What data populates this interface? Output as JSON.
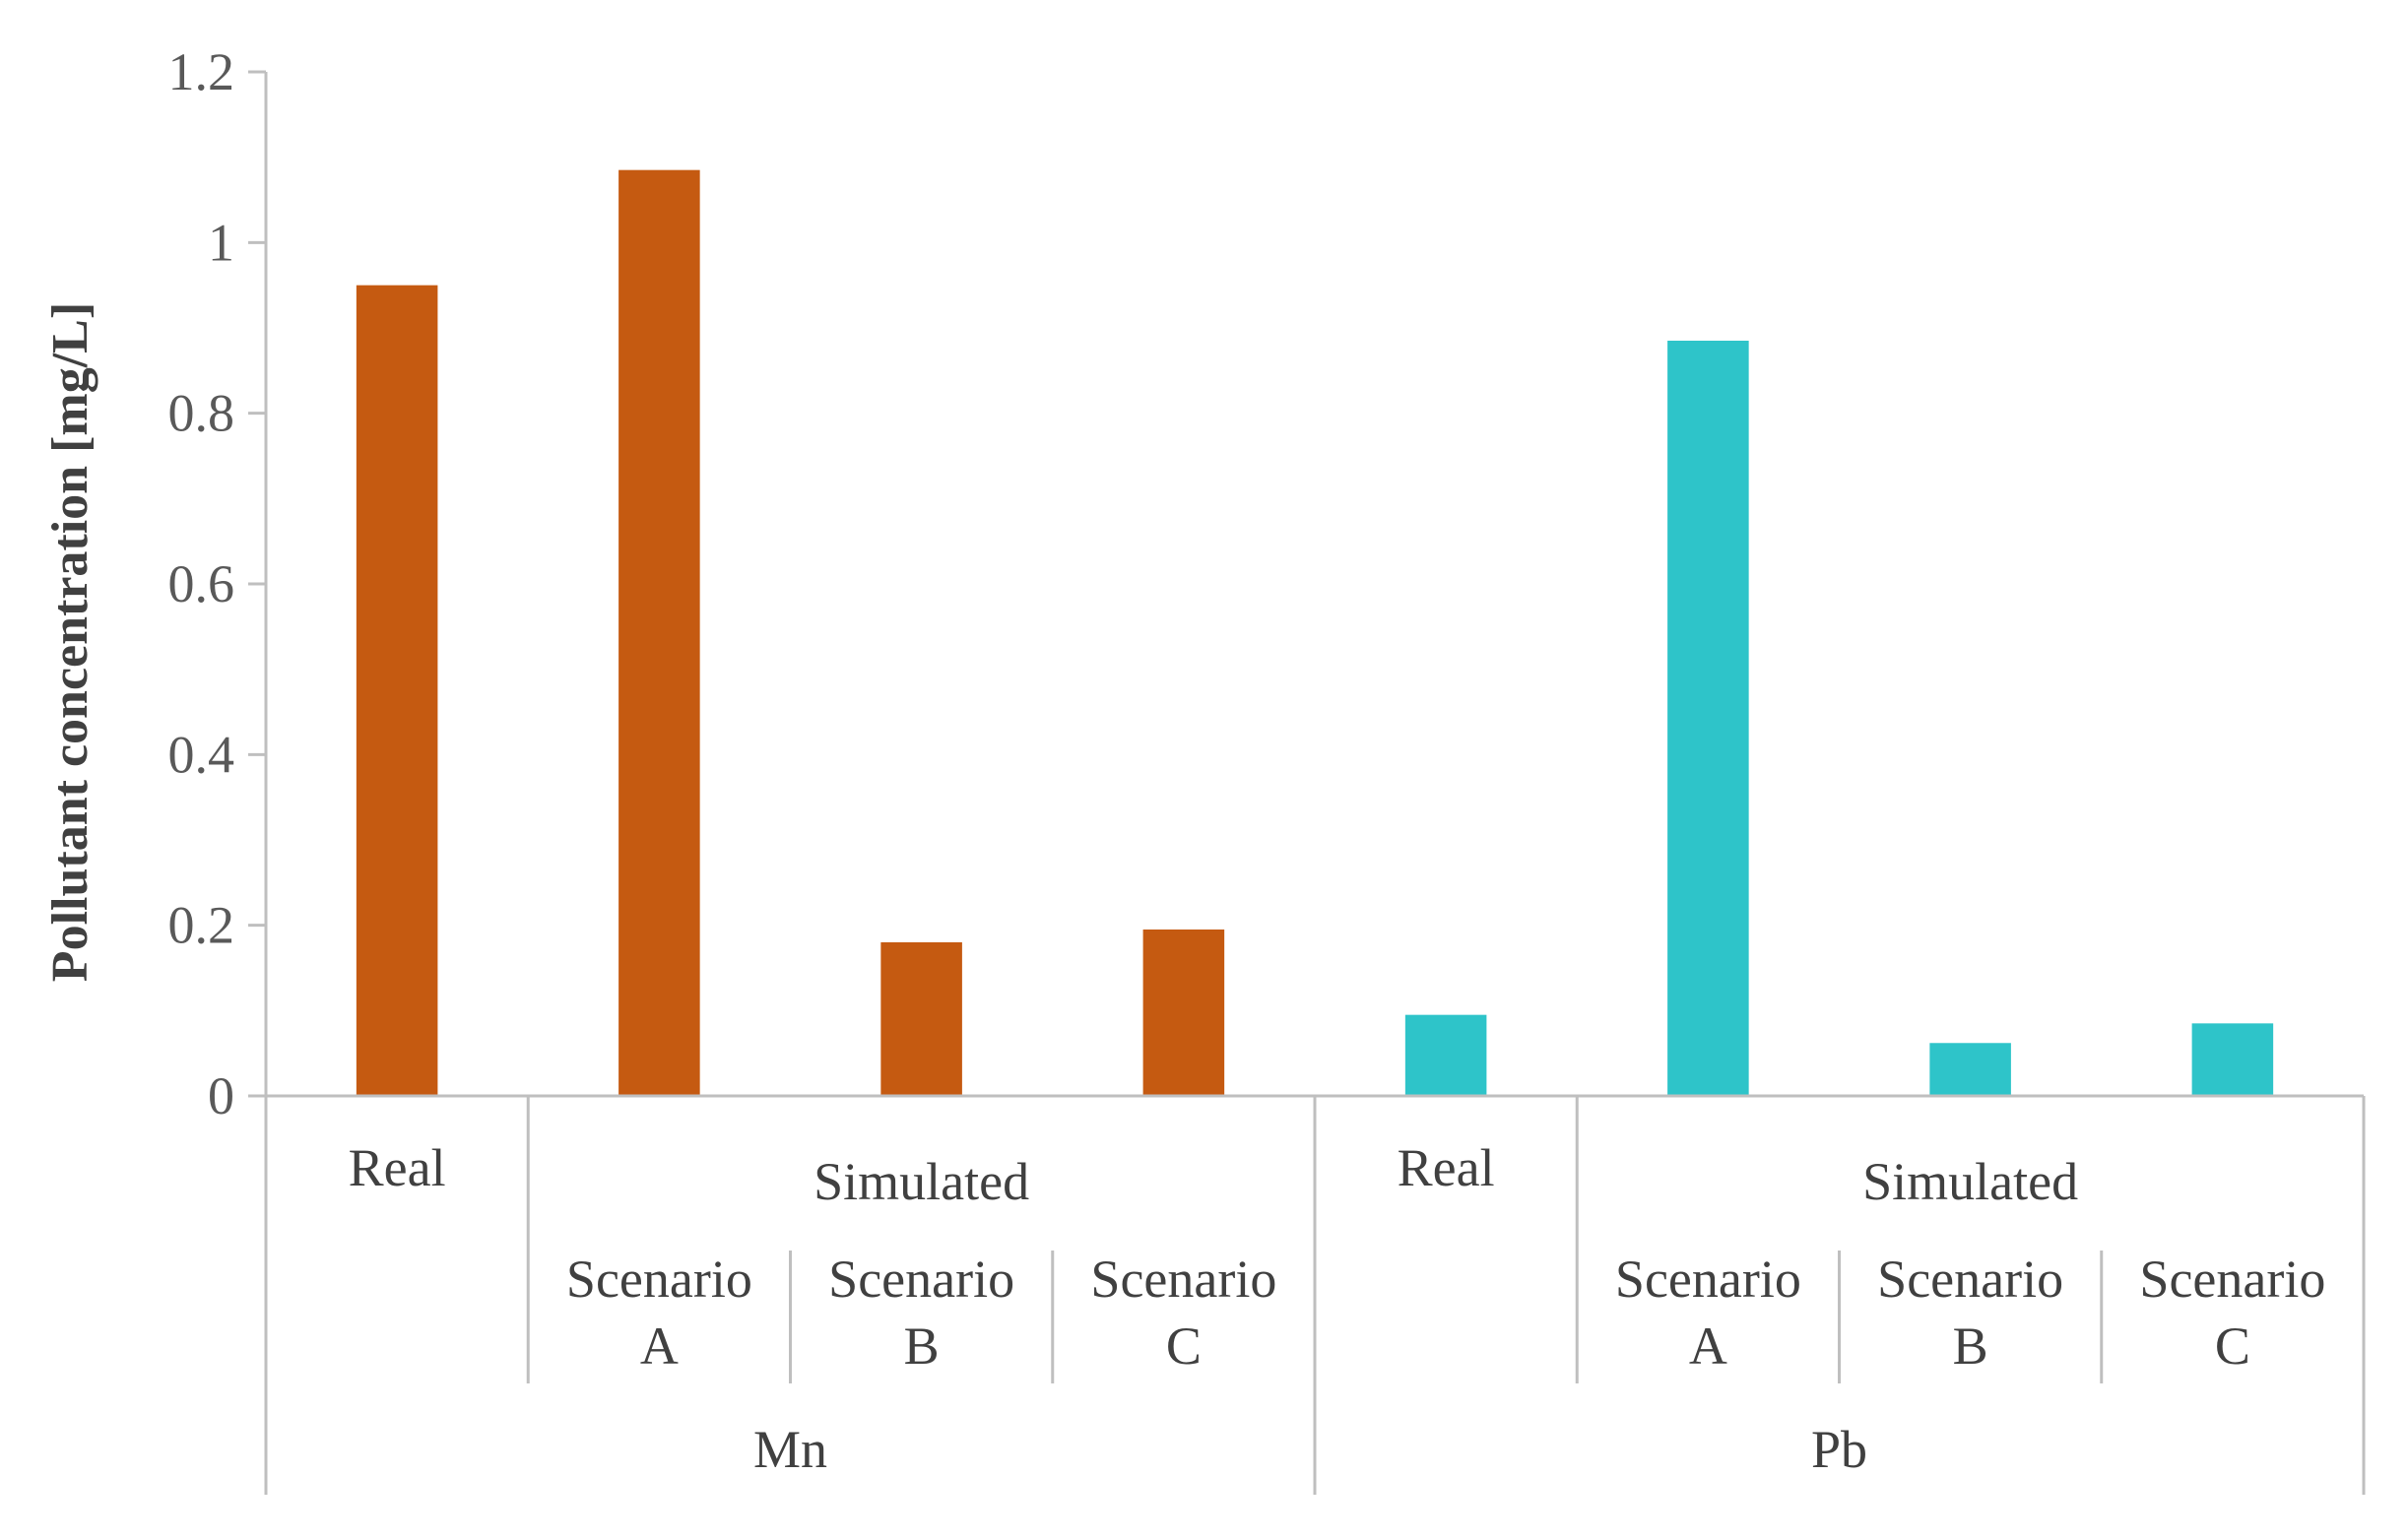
{
  "chart_data": {
    "type": "bar",
    "title": "",
    "ylabel": "Pollutant concentration [mg/L]",
    "ylim": [
      0,
      1.2
    ],
    "yticks": [
      0,
      0.2,
      0.4,
      0.6,
      0.8,
      1,
      1.2
    ],
    "ytick_labels": [
      "0",
      "0.2",
      "0.4",
      "0.6",
      "0.8",
      "1",
      "1.2"
    ],
    "grid": false,
    "legend": "none",
    "groups": [
      {
        "name": "Mn",
        "color": "#c55a11",
        "real_label": "Real",
        "simulated_label": "Simulated",
        "bars": [
          {
            "label": "Real",
            "value": 0.95
          },
          {
            "label": "Scenario A",
            "value": 1.085
          },
          {
            "label": "Scenario B",
            "value": 0.18
          },
          {
            "label": "Scenario C",
            "value": 0.195
          }
        ]
      },
      {
        "name": "Pb",
        "color": "#2ec4c9",
        "real_label": "Real",
        "simulated_label": "Simulated",
        "bars": [
          {
            "label": "Real",
            "value": 0.095
          },
          {
            "label": "Scenario A",
            "value": 0.885
          },
          {
            "label": "Scenario B",
            "value": 0.062
          },
          {
            "label": "Scenario C",
            "value": 0.085
          }
        ]
      }
    ]
  }
}
